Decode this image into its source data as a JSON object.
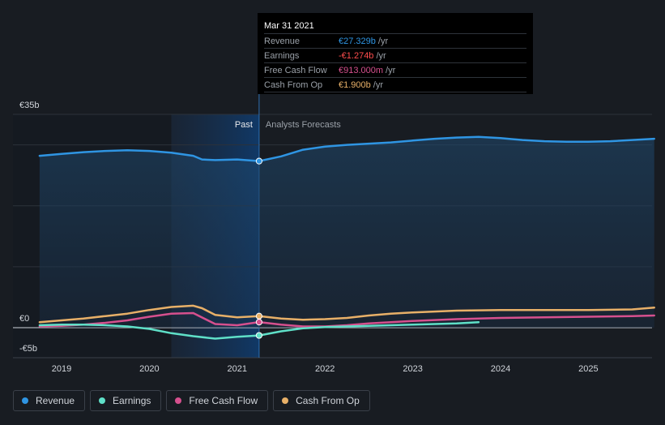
{
  "chart_data": {
    "type": "line",
    "title": "",
    "currency_symbol": "€",
    "y_unit": "b",
    "ylim": [
      -5,
      35
    ],
    "xlim": [
      2018.55,
      2025.75
    ],
    "y_tick_labels": [
      {
        "value": 35,
        "label": "€35b"
      },
      {
        "value": 0,
        "label": "€0"
      },
      {
        "value": -5,
        "label": "-€5b"
      }
    ],
    "x_ticks": [
      2019,
      2020,
      2021,
      2022,
      2023,
      2024,
      2025
    ],
    "x_tick_labels": [
      "2019",
      "2020",
      "2021",
      "2022",
      "2023",
      "2024",
      "2025"
    ],
    "past_region": {
      "start": 2020.25,
      "end": 2021.25,
      "label": "Past"
    },
    "forecast_label": "Analysts Forecasts",
    "series": [
      {
        "name": "Revenue",
        "color": "#2f95e3",
        "fill": true,
        "x": [
          2018.75,
          2019.0,
          2019.25,
          2019.5,
          2019.75,
          2020.0,
          2020.25,
          2020.5,
          2020.6,
          2020.75,
          2021.0,
          2021.25,
          2021.5,
          2021.75,
          2022.0,
          2022.25,
          2022.5,
          2022.75,
          2023.0,
          2023.25,
          2023.5,
          2023.75,
          2024.0,
          2024.25,
          2024.5,
          2024.75,
          2025.0,
          2025.25,
          2025.5,
          2025.75
        ],
        "values": [
          28.2,
          28.5,
          28.8,
          29.0,
          29.1,
          29.0,
          28.7,
          28.2,
          27.6,
          27.5,
          27.6,
          27.33,
          28.1,
          29.2,
          29.7,
          30.0,
          30.2,
          30.4,
          30.7,
          31.0,
          31.2,
          31.3,
          31.1,
          30.8,
          30.6,
          30.5,
          30.5,
          30.6,
          30.8,
          31.0
        ]
      },
      {
        "name": "Earnings",
        "color": "#5fe0c8",
        "fill": false,
        "x": [
          2018.75,
          2019.0,
          2019.25,
          2019.5,
          2019.75,
          2020.0,
          2020.25,
          2020.5,
          2020.75,
          2021.0,
          2021.25,
          2021.5,
          2021.75,
          2022.0,
          2022.25,
          2022.5,
          2022.75,
          2023.0,
          2023.25,
          2023.5,
          2023.75
        ],
        "values": [
          0.4,
          0.5,
          0.5,
          0.4,
          0.2,
          -0.2,
          -0.9,
          -1.4,
          -1.8,
          -1.5,
          -1.274,
          -0.6,
          -0.1,
          0.1,
          0.2,
          0.3,
          0.4,
          0.5,
          0.6,
          0.7,
          0.9
        ]
      },
      {
        "name": "Free Cash Flow",
        "color": "#d6508e",
        "fill": false,
        "x": [
          2018.75,
          2019.0,
          2019.25,
          2019.5,
          2019.75,
          2020.0,
          2020.25,
          2020.5,
          2020.75,
          2021.0,
          2021.25,
          2021.5,
          2021.75,
          2022.0,
          2022.25,
          2022.5,
          2022.75,
          2023.0,
          2023.5,
          2024.0,
          2024.5,
          2025.0,
          2025.5,
          2025.75
        ],
        "values": [
          0.2,
          0.3,
          0.5,
          0.8,
          1.2,
          1.8,
          2.3,
          2.4,
          0.6,
          0.4,
          0.913,
          0.5,
          0.2,
          0.2,
          0.4,
          0.7,
          0.9,
          1.1,
          1.4,
          1.6,
          1.7,
          1.8,
          1.9,
          2.0
        ]
      },
      {
        "name": "Cash From Op",
        "color": "#e8b068",
        "fill": false,
        "x": [
          2018.75,
          2019.0,
          2019.25,
          2019.5,
          2019.75,
          2020.0,
          2020.25,
          2020.5,
          2020.6,
          2020.75,
          2021.0,
          2021.25,
          2021.5,
          2021.75,
          2022.0,
          2022.25,
          2022.5,
          2022.75,
          2023.0,
          2023.5,
          2024.0,
          2024.5,
          2025.0,
          2025.5,
          2025.75
        ],
        "values": [
          0.9,
          1.2,
          1.5,
          1.9,
          2.3,
          2.9,
          3.4,
          3.6,
          3.2,
          2.1,
          1.7,
          1.9,
          1.5,
          1.3,
          1.4,
          1.6,
          2.0,
          2.3,
          2.5,
          2.8,
          2.9,
          2.9,
          2.9,
          3.0,
          3.3
        ]
      }
    ],
    "markers": [
      {
        "series": "Revenue",
        "x": 2021.25,
        "value": 27.33
      },
      {
        "series": "Earnings",
        "x": 2021.25,
        "value": -1.274
      },
      {
        "series": "Free Cash Flow",
        "x": 2021.25,
        "value": 0.913
      },
      {
        "series": "Cash From Op",
        "x": 2021.25,
        "value": 1.9
      }
    ]
  },
  "tooltip": {
    "date": "Mar 31 2021",
    "rows": [
      {
        "label": "Revenue",
        "value": "€27.329b",
        "unit": "/yr",
        "color": "#2f95e3"
      },
      {
        "label": "Earnings",
        "value": "-€1.274b",
        "unit": "/yr",
        "color": "#ff4d4d"
      },
      {
        "label": "Free Cash Flow",
        "value": "€913.000m",
        "unit": "/yr",
        "color": "#d6508e"
      },
      {
        "label": "Cash From Op",
        "value": "€1.900b",
        "unit": "/yr",
        "color": "#e8b068"
      }
    ]
  },
  "legend": [
    {
      "label": "Revenue",
      "color": "#2f95e3"
    },
    {
      "label": "Earnings",
      "color": "#5fe0c8"
    },
    {
      "label": "Free Cash Flow",
      "color": "#d6508e"
    },
    {
      "label": "Cash From Op",
      "color": "#e8b068"
    }
  ]
}
